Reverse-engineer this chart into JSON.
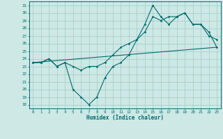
{
  "title": "",
  "xlabel": "Humidex (Indice chaleur)",
  "background_color": "#cde8e5",
  "grid_color": "#a8d0cc",
  "line_color": "#006b6b",
  "xlim": [
    -0.5,
    23.5
  ],
  "ylim": [
    17.5,
    31.5
  ],
  "xticks": [
    0,
    1,
    2,
    3,
    4,
    5,
    6,
    7,
    8,
    9,
    10,
    11,
    12,
    13,
    14,
    15,
    16,
    17,
    18,
    19,
    20,
    21,
    22,
    23
  ],
  "yticks": [
    18,
    19,
    20,
    21,
    22,
    23,
    24,
    25,
    26,
    27,
    28,
    29,
    30,
    31
  ],
  "line1_x": [
    0,
    1,
    2,
    3,
    4,
    5,
    6,
    7,
    8,
    9,
    10,
    11,
    12,
    13,
    14,
    15,
    16,
    17,
    18,
    19,
    20,
    21,
    22,
    23
  ],
  "line1_y": [
    23.5,
    23.5,
    24.0,
    23.0,
    23.5,
    20.0,
    19.0,
    18.0,
    19.0,
    21.5,
    23.0,
    23.5,
    24.5,
    26.5,
    28.5,
    31.0,
    29.5,
    28.5,
    29.5,
    30.0,
    28.5,
    28.5,
    27.0,
    26.5
  ],
  "line2_x": [
    0,
    1,
    2,
    3,
    4,
    5,
    6,
    7,
    8,
    9,
    10,
    11,
    12,
    13,
    14,
    15,
    16,
    17,
    18,
    19,
    20,
    21,
    22,
    23
  ],
  "line2_y": [
    23.5,
    23.5,
    24.0,
    23.0,
    23.5,
    23.0,
    22.5,
    23.0,
    23.0,
    23.5,
    24.5,
    25.5,
    26.0,
    26.5,
    27.5,
    29.5,
    29.0,
    29.5,
    29.5,
    30.0,
    28.5,
    28.5,
    27.5,
    25.5
  ],
  "line3_x": [
    0,
    23
  ],
  "line3_y": [
    23.5,
    25.5
  ]
}
